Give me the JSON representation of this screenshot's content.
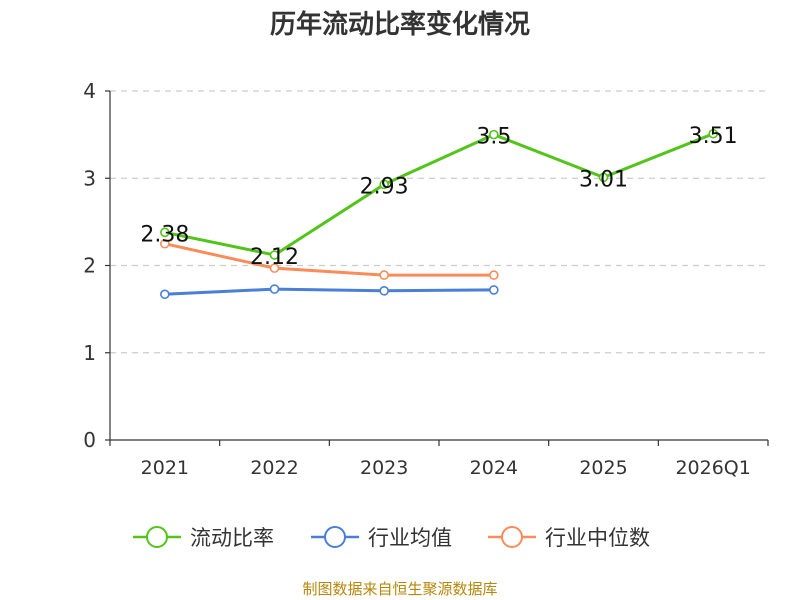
{
  "chart_data": {
    "type": "line",
    "title": "历年流动比率变化情况",
    "categories": [
      "2021",
      "2022",
      "2023",
      "2024",
      "2025",
      "2026Q1"
    ],
    "ylim": [
      0,
      4
    ],
    "yticks": [
      0,
      1,
      2,
      3,
      4
    ],
    "grid": true,
    "legend_position": "bottom",
    "xlabel": "",
    "ylabel": "",
    "series": [
      {
        "name": "流动比率",
        "color": "#52c41a",
        "values": [
          2.38,
          2.12,
          2.93,
          3.5,
          3.01,
          3.51
        ],
        "labels": [
          "2.38",
          "2.12",
          "2.93",
          "3.5",
          "3.01",
          "3.51"
        ],
        "show_labels": true
      },
      {
        "name": "行业均值",
        "color": "#4a7fd8",
        "values": [
          1.67,
          1.73,
          1.71,
          1.72,
          null,
          null
        ],
        "show_labels": false
      },
      {
        "name": "行业中位数",
        "color": "#fa8c5a",
        "values": [
          2.25,
          1.97,
          1.89,
          1.89,
          null,
          null
        ],
        "show_labels": false
      }
    ],
    "source": "制图数据来自恒生聚源数据库"
  }
}
